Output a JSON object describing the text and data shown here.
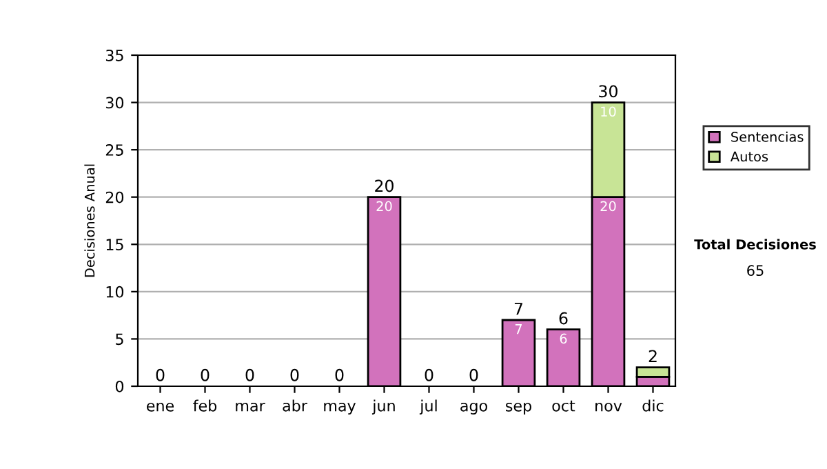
{
  "chart_data": {
    "type": "bar",
    "ylabel": "Decisiones Anual",
    "categories": [
      "ene",
      "feb",
      "mar",
      "abr",
      "may",
      "jun",
      "jul",
      "ago",
      "sep",
      "oct",
      "nov",
      "dic"
    ],
    "stacked": true,
    "series": [
      {
        "name": "Sentencias",
        "color": "#d272bc",
        "values": [
          0,
          0,
          0,
          0,
          0,
          20,
          0,
          0,
          7,
          6,
          20,
          1
        ],
        "value_labels": [
          null,
          null,
          null,
          null,
          null,
          "20",
          null,
          null,
          "7",
          "6",
          "20",
          null
        ]
      },
      {
        "name": "Autos",
        "color": "#c8e496",
        "values": [
          0,
          0,
          0,
          0,
          0,
          0,
          0,
          0,
          0,
          0,
          10,
          1
        ],
        "value_labels": [
          null,
          null,
          null,
          null,
          null,
          null,
          null,
          null,
          null,
          null,
          "10",
          null
        ]
      }
    ],
    "totals": [
      "0",
      "0",
      "0",
      "0",
      "0",
      "20",
      "0",
      "0",
      "7",
      "6",
      "30",
      "2"
    ],
    "ylim": [
      0,
      35
    ],
    "yticks": [
      0,
      5,
      10,
      15,
      20,
      25,
      30,
      35
    ],
    "grid": "y",
    "legend": "right",
    "annotations": [
      "Total Decisiones",
      "65"
    ]
  }
}
